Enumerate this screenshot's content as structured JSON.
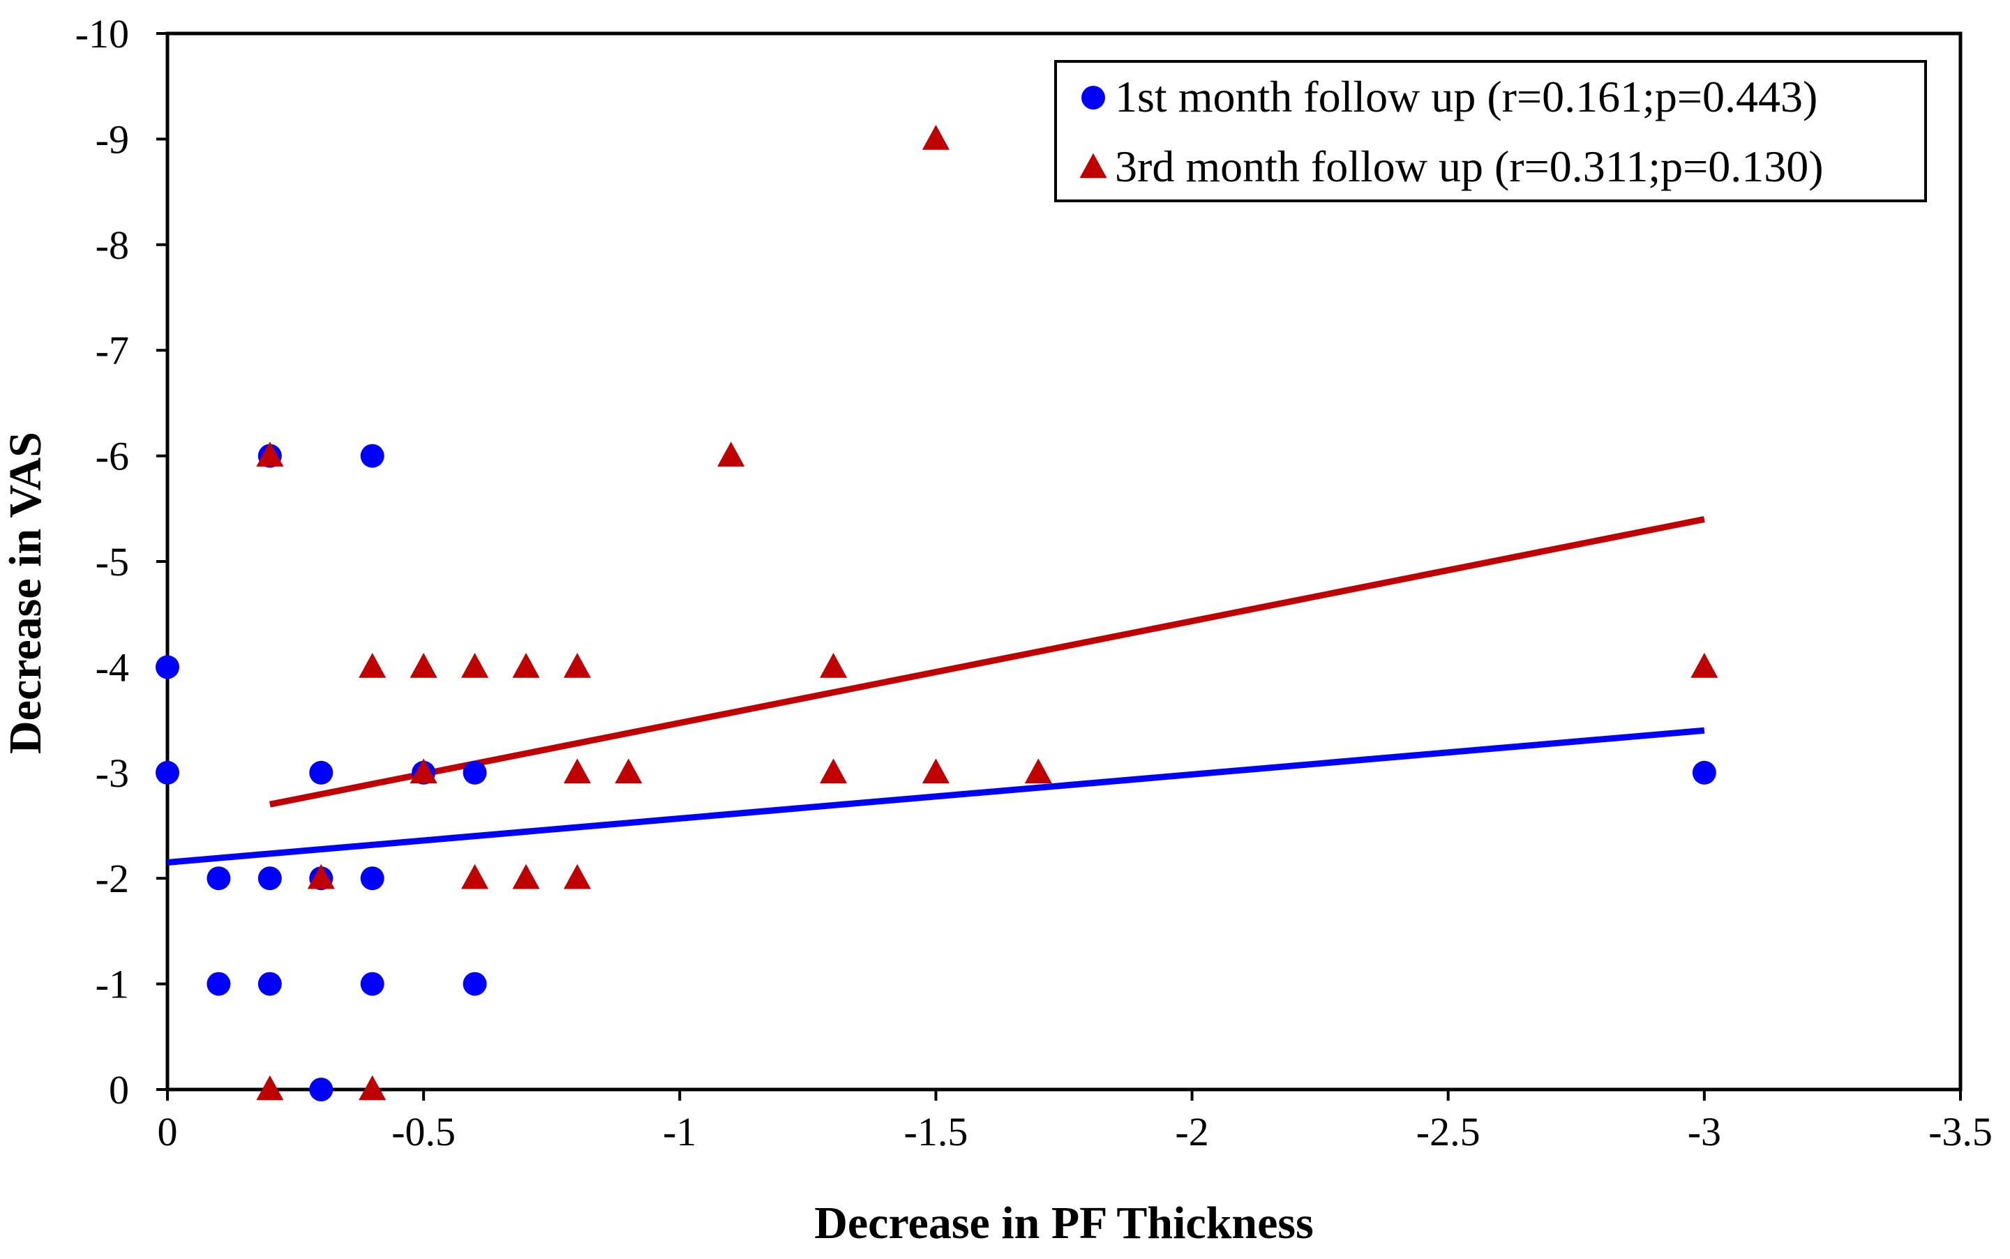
{
  "chart_data": {
    "type": "scatter",
    "title": "",
    "xlabel": "Decrease in PF Thickness",
    "ylabel": "Decrease in VAS",
    "xlim": [
      0,
      -3.5
    ],
    "ylim": [
      0,
      -10
    ],
    "xticks": [
      0,
      -0.5,
      -1,
      -1.5,
      -2,
      -2.5,
      -3,
      -3.5
    ],
    "xtick_labels": [
      "0",
      "-0.5",
      "-1",
      "-1.5",
      "-2",
      "-2.5",
      "-3",
      "-3.5"
    ],
    "yticks": [
      0,
      -1,
      -2,
      -3,
      -4,
      -5,
      -6,
      -7,
      -8,
      -9,
      -10
    ],
    "ytick_labels": [
      "0",
      "-1",
      "-2",
      "-3",
      "-4",
      "-5",
      "-6",
      "-7",
      "-8",
      "-9",
      "-10"
    ],
    "grid": false,
    "legend_position": "top-right",
    "series": [
      {
        "name": "1st month follow up (r=0.161;p=0.443)",
        "marker": "circle",
        "color": "#0000ff",
        "points": [
          [
            0,
            -4
          ],
          [
            0,
            -3
          ],
          [
            -0.1,
            -2
          ],
          [
            -0.1,
            -1
          ],
          [
            -0.2,
            -6
          ],
          [
            -0.2,
            -2
          ],
          [
            -0.2,
            -1
          ],
          [
            -0.3,
            -3
          ],
          [
            -0.3,
            -2
          ],
          [
            -0.3,
            0
          ],
          [
            -0.4,
            -6
          ],
          [
            -0.4,
            -2
          ],
          [
            -0.4,
            -1
          ],
          [
            -0.5,
            -3
          ],
          [
            -0.6,
            -3
          ],
          [
            -0.6,
            -1
          ],
          [
            -3,
            -3
          ]
        ],
        "trendline": {
          "color": "#0000ff",
          "from": [
            0,
            -2.15
          ],
          "to": [
            -3,
            -3.4
          ]
        }
      },
      {
        "name": "3rd month follow up (r=0.311;p=0.130)",
        "marker": "triangle",
        "color": "#c00000",
        "points": [
          [
            -0.2,
            -6
          ],
          [
            -0.2,
            0
          ],
          [
            -0.3,
            -2
          ],
          [
            -0.4,
            -4
          ],
          [
            -0.4,
            0
          ],
          [
            -0.5,
            -4
          ],
          [
            -0.5,
            -3
          ],
          [
            -0.6,
            -4
          ],
          [
            -0.6,
            -2
          ],
          [
            -0.7,
            -4
          ],
          [
            -0.7,
            -2
          ],
          [
            -0.8,
            -4
          ],
          [
            -0.8,
            -3
          ],
          [
            -0.8,
            -2
          ],
          [
            -0.9,
            -3
          ],
          [
            -1.1,
            -6
          ],
          [
            -1.3,
            -4
          ],
          [
            -1.3,
            -3
          ],
          [
            -1.5,
            -9
          ],
          [
            -1.5,
            -3
          ],
          [
            -1.7,
            -3
          ],
          [
            -3,
            -4
          ]
        ],
        "trendline": {
          "color": "#c00000",
          "from": [
            -0.2,
            -2.7
          ],
          "to": [
            -3,
            -5.4
          ]
        }
      }
    ]
  }
}
